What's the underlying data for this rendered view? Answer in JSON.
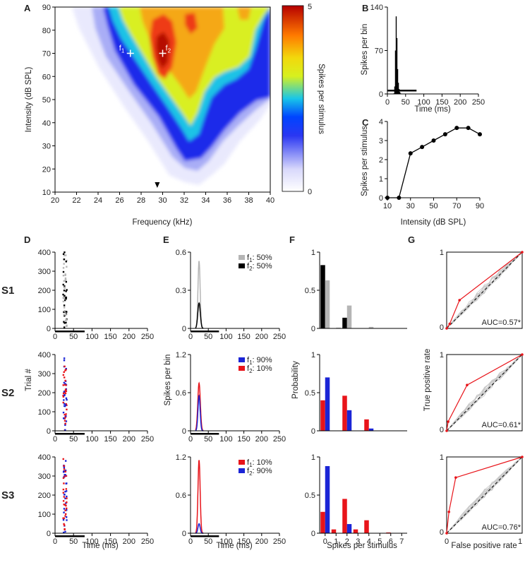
{
  "colors": {
    "red": "#e8141a",
    "blue": "#1b25d6",
    "gray": "#b5b5b5",
    "black": "#000000"
  },
  "panels": {
    "A": {
      "label": "A",
      "title": "",
      "type": "heatmap",
      "xlabel": "Frequency (kHz)",
      "ylabel": "Intensity (dB SPL)",
      "x_ticks": [
        "20",
        "22",
        "24",
        "26",
        "28",
        "30",
        "32",
        "34",
        "36",
        "38",
        "40"
      ],
      "y_ticks": [
        "10",
        "20",
        "30",
        "40",
        "50",
        "60",
        "70",
        "80",
        "90"
      ],
      "xlim": [
        20,
        40
      ],
      "ylim": [
        10,
        90
      ],
      "marker_f1": {
        "label": "f",
        "sub": "1",
        "x": 27.0,
        "y": 70
      },
      "marker_f2": {
        "label": "f",
        "sub": "2",
        "x": 30.0,
        "y": 70
      },
      "arrow_x": 29.5,
      "colorbar": {
        "label": "Spikes per stimulus",
        "max": "5",
        "min": "0"
      }
    },
    "B": {
      "label": "B",
      "type": "bar",
      "xlabel": "Time (ms)",
      "ylabel": "Spikes per bin",
      "x_ticks": [
        "0",
        "50",
        "100",
        "150",
        "200",
        "250"
      ],
      "y_ticks": [
        "0",
        "70",
        "140"
      ],
      "xlim": [
        0,
        250
      ],
      "ylim": [
        0,
        140
      ],
      "stim_bar": [
        0,
        80
      ],
      "bins": [
        {
          "x": 18,
          "v": 1
        },
        {
          "x": 20,
          "v": 12
        },
        {
          "x": 22,
          "v": 70
        },
        {
          "x": 24,
          "v": 125
        },
        {
          "x": 26,
          "v": 90
        },
        {
          "x": 28,
          "v": 40
        },
        {
          "x": 30,
          "v": 18
        },
        {
          "x": 32,
          "v": 8
        },
        {
          "x": 34,
          "v": 3
        },
        {
          "x": 36,
          "v": 1
        }
      ]
    },
    "C": {
      "label": "C",
      "type": "line",
      "xlabel": "Intensity (dB SPL)",
      "ylabel": "Spikes per stimulus",
      "x_ticks": [
        "10",
        "30",
        "50",
        "70",
        "90"
      ],
      "y_ticks": [
        "0",
        "1",
        "2",
        "3",
        "4"
      ],
      "xlim": [
        10,
        90
      ],
      "ylim": [
        0,
        4
      ],
      "x": [
        10,
        20,
        30,
        40,
        50,
        60,
        70,
        80,
        90
      ],
      "y": [
        0,
        0,
        2.33,
        2.66,
        3.0,
        3.33,
        3.66,
        3.66,
        3.33
      ]
    },
    "D": {
      "label": "D",
      "xlabel": "Time (ms)",
      "ylabel": "Trial #",
      "x_ticks": [
        "0",
        "50",
        "100",
        "150",
        "200",
        "250"
      ],
      "y_ticks": [
        "0",
        "100",
        "200",
        "300",
        "400"
      ],
      "xlim": [
        0,
        250
      ],
      "ylim": [
        0,
        400
      ],
      "stim_bar": [
        0,
        80
      ]
    },
    "E": {
      "label": "E",
      "xlabel": "Time (ms)",
      "ylabel": "Spikes per bin",
      "x_ticks": [
        "0",
        "50",
        "100",
        "150",
        "200",
        "250"
      ],
      "xlim": [
        0,
        250
      ],
      "stim_bar": [
        0,
        80
      ]
    },
    "F": {
      "label": "F",
      "xlabel": "Spikes per stimulus",
      "ylabel": "Probability",
      "x_ticks": [
        "0",
        "1",
        "2",
        "3",
        "4",
        "5",
        "6",
        "7"
      ],
      "y_ticks": [
        "0",
        "0.5",
        "1"
      ],
      "ylim": [
        0,
        1
      ]
    },
    "G": {
      "label": "G",
      "xlabel": "False positive rate",
      "ylabel": "True positive rate",
      "x_ticks": [
        "0",
        "1"
      ],
      "y_ticks": [
        "0",
        "1"
      ]
    }
  },
  "rows": [
    {
      "name": "S1",
      "raster_colors": [
        "gray",
        "black"
      ],
      "psth": {
        "ylim": [
          0,
          0.6
        ],
        "y_ticks": [
          "0",
          "0.3",
          "0.6"
        ],
        "curves": [
          {
            "color": "gray",
            "peak": 0.53,
            "center": 24,
            "width": 3
          },
          {
            "color": "black",
            "peak": 0.2,
            "center": 24,
            "width": 3.5
          }
        ]
      },
      "legend": [
        {
          "color": "gray",
          "label": "f",
          "sub": "1",
          "value": ": 50%"
        },
        {
          "color": "black",
          "label": "f",
          "sub": "2",
          "value": ": 50%"
        }
      ],
      "hist": {
        "series": [
          {
            "color": "black",
            "values": [
              0.83,
              0.0,
              0.14,
              0.0,
              0.0,
              0.0,
              0.0,
              0.0
            ]
          },
          {
            "color": "gray",
            "values": [
              0.63,
              0.01,
              0.3,
              0.0,
              0.02,
              0.0,
              0.0,
              0.0
            ]
          }
        ]
      },
      "roc": {
        "points": [
          [
            0,
            0
          ],
          [
            0.04,
            0.06
          ],
          [
            0.17,
            0.37
          ],
          [
            1,
            1
          ]
        ],
        "auc": "AUC=0.57*"
      }
    },
    {
      "name": "S2",
      "raster_colors": [
        "blue",
        "red"
      ],
      "psth": {
        "ylim": [
          0,
          1.2
        ],
        "y_ticks": [
          "0",
          "0.6",
          "1.2"
        ],
        "curves": [
          {
            "color": "red",
            "peak": 0.75,
            "center": 24,
            "width": 3.5
          },
          {
            "color": "blue",
            "peak": 0.55,
            "center": 24,
            "width": 3
          }
        ]
      },
      "legend": [
        {
          "color": "blue",
          "label": "f",
          "sub": "1",
          "value": ": 90%"
        },
        {
          "color": "red",
          "label": "f",
          "sub": "2",
          "value": ": 10%"
        }
      ],
      "hist": {
        "series": [
          {
            "color": "red",
            "values": [
              0.4,
              0.0,
              0.46,
              0.0,
              0.15,
              0.0,
              0.0,
              0.0
            ]
          },
          {
            "color": "blue",
            "values": [
              0.7,
              0.0,
              0.27,
              0.0,
              0.03,
              0.0,
              0.0,
              0.0
            ]
          }
        ]
      },
      "roc": {
        "points": [
          [
            0,
            0
          ],
          [
            0.02,
            0.12
          ],
          [
            0.27,
            0.6
          ],
          [
            1,
            1
          ]
        ],
        "auc": "AUC=0.61*"
      }
    },
    {
      "name": "S3",
      "raster_colors": [
        "red",
        "blue"
      ],
      "psth": {
        "ylim": [
          0,
          1.2
        ],
        "y_ticks": [
          "0",
          "0.6",
          "1.2"
        ],
        "curves": [
          {
            "color": "red",
            "peak": 1.15,
            "center": 24,
            "width": 3
          },
          {
            "color": "blue",
            "peak": 0.15,
            "center": 24,
            "width": 3
          }
        ]
      },
      "legend": [
        {
          "color": "red",
          "label": "f",
          "sub": "1",
          "value": ": 10%"
        },
        {
          "color": "blue",
          "label": "f",
          "sub": "2",
          "value": ": 90%"
        }
      ],
      "hist": {
        "series": [
          {
            "color": "red",
            "values": [
              0.28,
              0.05,
              0.45,
              0.05,
              0.17,
              0.0,
              0.01,
              0.0
            ]
          },
          {
            "color": "blue",
            "values": [
              0.88,
              0.0,
              0.12,
              0.0,
              0.0,
              0.0,
              0.0,
              0.0
            ]
          }
        ]
      },
      "roc": {
        "points": [
          [
            0,
            0
          ],
          [
            0.03,
            0.28
          ],
          [
            0.12,
            0.73
          ],
          [
            1,
            1
          ]
        ],
        "auc": "AUC=0.76*"
      }
    }
  ],
  "chart_data": {
    "type": "heatmap",
    "title": "",
    "xlabel": "Frequency (kHz)",
    "ylabel": "Intensity (dB SPL)",
    "xlim": [
      20,
      40
    ],
    "ylim": [
      10,
      90
    ],
    "notes": "Frequency response area; panels B-G show PSTH, rate-level function, rasters, PSTHs, spike count histograms and ROC curves for stimulus sets S1-S3."
  }
}
